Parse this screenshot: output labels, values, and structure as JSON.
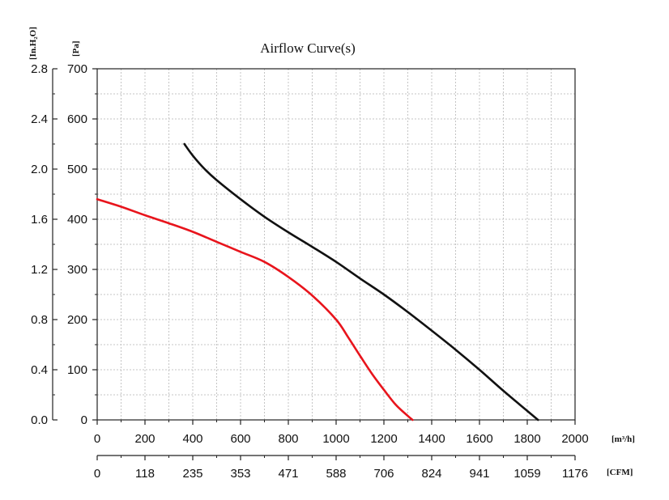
{
  "chart_data": {
    "type": "line",
    "title": "Airflow Curve(s)",
    "x_unit_label": "[m³/h]",
    "x2_unit_label": "[CFM]",
    "y_unit_label": "[Pa]",
    "y2_unit_label": "[In.H₂O]",
    "xlim": [
      0,
      2000
    ],
    "ylim": [
      0,
      700
    ],
    "x_ticks": [
      0,
      200,
      400,
      600,
      800,
      1000,
      1200,
      1400,
      1600,
      1800,
      2000
    ],
    "x2_ticks": [
      "0",
      "118",
      "235",
      "353",
      "471",
      "588",
      "706",
      "824",
      "941",
      "1059",
      "1176"
    ],
    "y_ticks": [
      0,
      100,
      200,
      300,
      400,
      500,
      600,
      700
    ],
    "y2_ticks": [
      "0.0",
      "0.4",
      "0.8",
      "1.2",
      "1.6",
      "2.0",
      "2.4",
      "2.8"
    ],
    "grid": true,
    "series": [
      {
        "color": "#e8141c",
        "x": [
          0,
          100,
          200,
          300,
          400,
          500,
          600,
          700,
          800,
          900,
          1000,
          1050,
          1100,
          1150,
          1200,
          1250,
          1300,
          1320
        ],
        "y": [
          440,
          425,
          408,
          392,
          375,
          355,
          335,
          315,
          285,
          248,
          200,
          165,
          128,
          92,
          60,
          30,
          8,
          0
        ]
      },
      {
        "color": "#111111",
        "x": [
          365,
          400,
          450,
          500,
          600,
          700,
          800,
          900,
          1000,
          1100,
          1200,
          1300,
          1400,
          1500,
          1600,
          1700,
          1800,
          1845
        ],
        "y": [
          550,
          527,
          500,
          478,
          440,
          405,
          374,
          345,
          315,
          282,
          250,
          215,
          178,
          140,
          100,
          58,
          18,
          0
        ]
      }
    ]
  }
}
